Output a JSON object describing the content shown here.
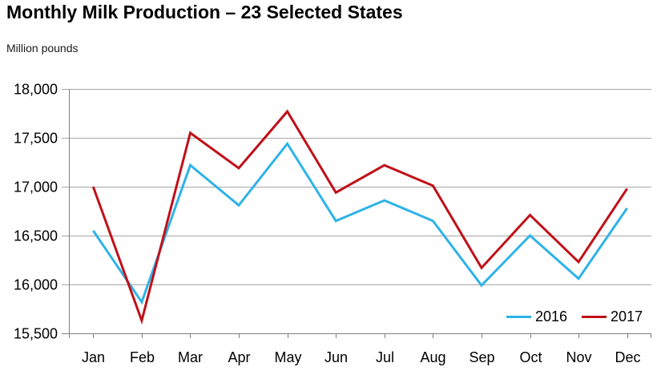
{
  "header": {
    "title": "Monthly Milk Production – 23 Selected States",
    "units_label": "Million pounds"
  },
  "chart_data": {
    "type": "line",
    "title": "Monthly Milk Production – 23 Selected States",
    "ylabel": "Million pounds",
    "x": [
      "Jan",
      "Feb",
      "Mar",
      "Apr",
      "May",
      "Jun",
      "Jul",
      "Aug",
      "Sep",
      "Oct",
      "Nov",
      "Dec"
    ],
    "series": [
      {
        "name": "2016",
        "color": "#2EB3E7",
        "values": [
          16550,
          15820,
          17220,
          16810,
          17440,
          16650,
          16860,
          16650,
          15990,
          16500,
          16060,
          16780
        ]
      },
      {
        "name": "2017",
        "color": "#C01018",
        "values": [
          17000,
          15630,
          17550,
          17190,
          17770,
          16940,
          17220,
          17010,
          16170,
          16710,
          16230,
          16980
        ]
      }
    ],
    "ylim": [
      15500,
      18000
    ],
    "ytick_step": 500,
    "ytick_labels": [
      "15,500",
      "16,000",
      "16,500",
      "17,000",
      "17,500",
      "18,000"
    ],
    "grid": true,
    "legend_position": "inside-bottom-right",
    "grid_color": "#A6A6A6",
    "axis_color": "#7F7F7F",
    "text_color": "#000000"
  }
}
